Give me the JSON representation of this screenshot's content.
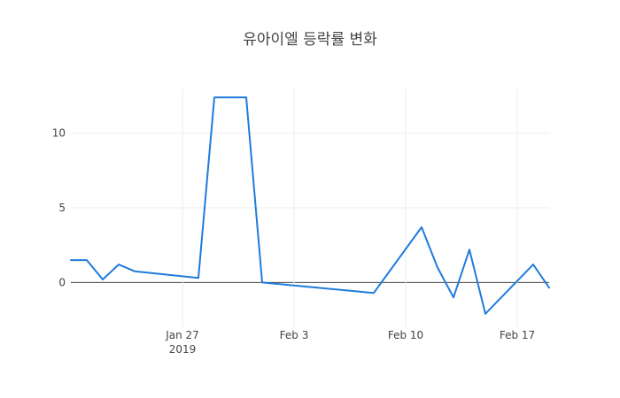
{
  "colors": {
    "series": "#1f7bdc",
    "text": "#444444",
    "grid": "#eeeeee",
    "zero_line": "#444444",
    "background": "#ffffff"
  },
  "chart_data": {
    "type": "line",
    "title": "유아이엘 등락률 변화",
    "xlabel": "",
    "ylabel": "",
    "grid": true,
    "x_range": [
      "2019-01-20",
      "2019-02-19"
    ],
    "ylim": [
      -3,
      13
    ],
    "y_ticks": [
      {
        "value": 0,
        "label": "0"
      },
      {
        "value": 5,
        "label": "5"
      },
      {
        "value": 10,
        "label": "10"
      }
    ],
    "x_ticks": [
      {
        "date": "2019-01-27",
        "label": "Jan 27",
        "sublabel": "2019"
      },
      {
        "date": "2019-02-03",
        "label": "Feb 3",
        "sublabel": ""
      },
      {
        "date": "2019-02-10",
        "label": "Feb 10",
        "sublabel": ""
      },
      {
        "date": "2019-02-17",
        "label": "Feb 17",
        "sublabel": ""
      }
    ],
    "series": [
      {
        "points": [
          {
            "x": "2019-01-20",
            "y": 1.5
          },
          {
            "x": "2019-01-21",
            "y": 1.5
          },
          {
            "x": "2019-01-22",
            "y": 0.2
          },
          {
            "x": "2019-01-23",
            "y": 1.2
          },
          {
            "x": "2019-01-24",
            "y": 0.75
          },
          {
            "x": "2019-01-28",
            "y": 0.3
          },
          {
            "x": "2019-01-29",
            "y": 12.4
          },
          {
            "x": "2019-01-31",
            "y": 12.4
          },
          {
            "x": "2019-02-01",
            "y": 0.0
          },
          {
            "x": "2019-02-08",
            "y": -0.7
          },
          {
            "x": "2019-02-11",
            "y": 3.7
          },
          {
            "x": "2019-02-12",
            "y": 1.0
          },
          {
            "x": "2019-02-13",
            "y": -1.0
          },
          {
            "x": "2019-02-14",
            "y": 2.2
          },
          {
            "x": "2019-02-15",
            "y": -2.1
          },
          {
            "x": "2019-02-18",
            "y": 1.2
          },
          {
            "x": "2019-02-19",
            "y": -0.35
          }
        ]
      }
    ]
  }
}
